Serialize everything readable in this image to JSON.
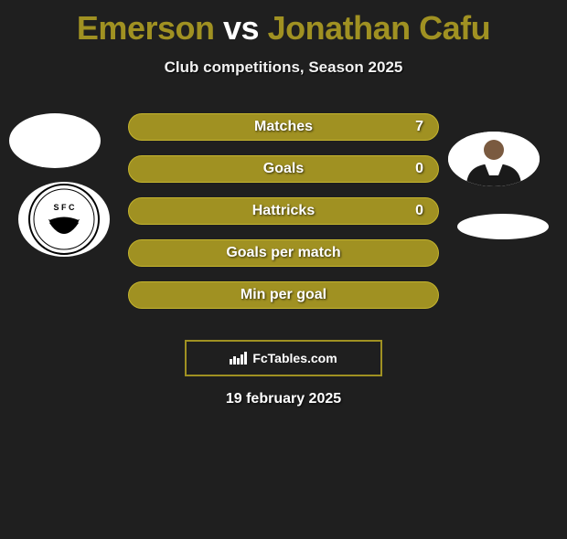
{
  "title": {
    "player1": "Emerson",
    "vs": "vs",
    "player2": "Jonathan Cafu",
    "player1_color": "#a09122",
    "vs_color": "#ffffff",
    "player2_color": "#a09122"
  },
  "subtitle": "Club competitions, Season 2025",
  "bars": [
    {
      "label": "Matches",
      "value": "7",
      "bg_color": "#a09122",
      "border_color": "#c5b52e"
    },
    {
      "label": "Goals",
      "value": "0",
      "bg_color": "#a09122",
      "border_color": "#c5b52e"
    },
    {
      "label": "Hattricks",
      "value": "0",
      "bg_color": "#a09122",
      "border_color": "#c5b52e"
    },
    {
      "label": "Goals per match",
      "value": "",
      "bg_color": "#a09122",
      "border_color": "#c5b52e"
    },
    {
      "label": "Min per goal",
      "value": "",
      "bg_color": "#a09122",
      "border_color": "#c5b52e"
    }
  ],
  "logo_text": "FcTables.com",
  "logo_border_color": "#a09122",
  "date": "19 february 2025",
  "background_color": "#1f1f1f",
  "text_color": "#ffffff",
  "player_left": {
    "avatar_bg": "#ffffff",
    "club": "Santos FC"
  },
  "player_right": {
    "avatar_bg": "#ffffff",
    "club_bg": "#ffffff"
  }
}
